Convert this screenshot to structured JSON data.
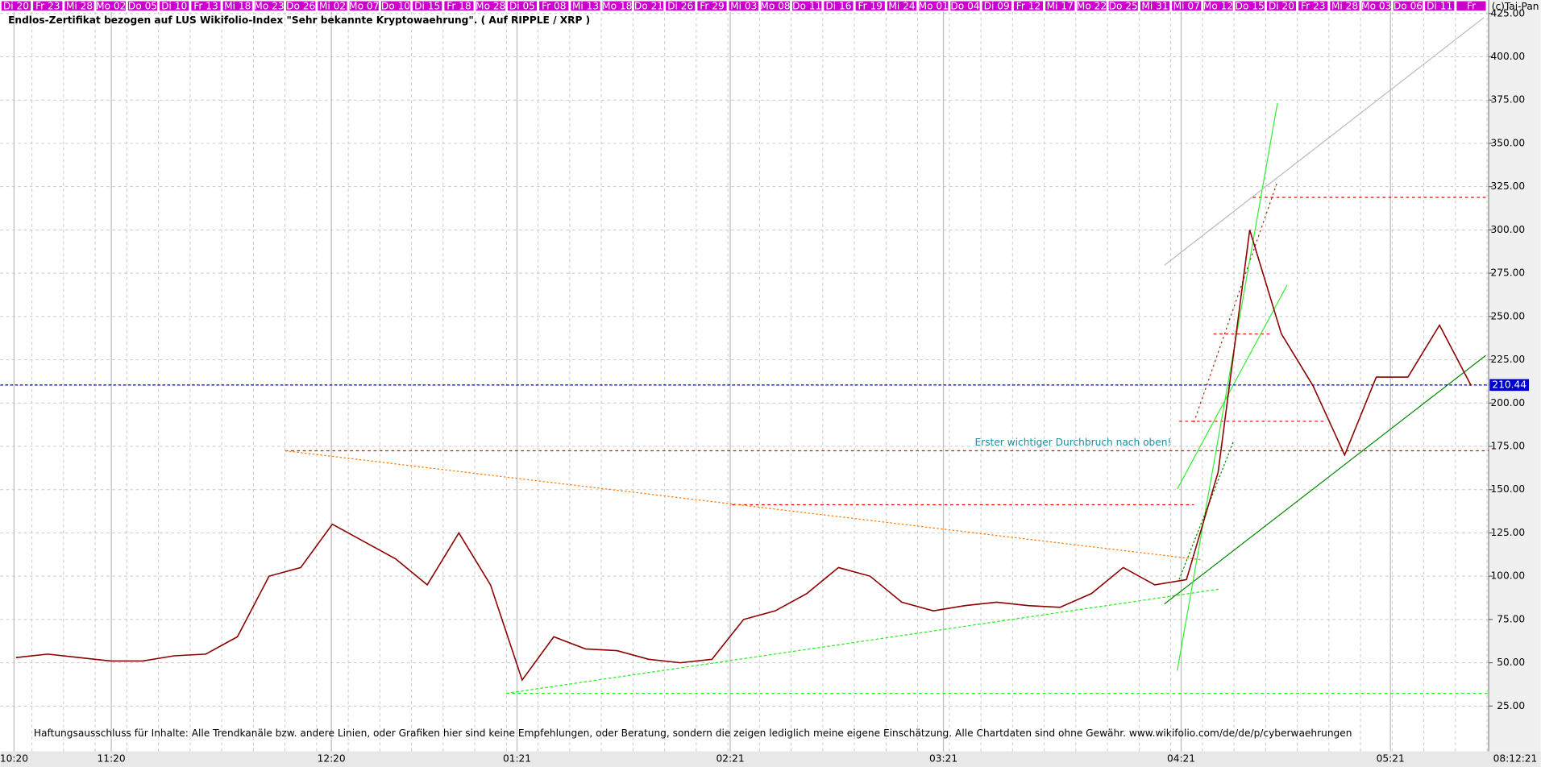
{
  "chart_data": {
    "type": "line",
    "title": "Endlos-Zertifikat bezogen auf LUS Wikifolio-Index \"Sehr bekannte Kryptowaehrung\". ( Auf RIPPLE / XRP )",
    "watermark": "(c)Tai-Pan",
    "categories": [
      "Di 20",
      "Fr 23",
      "Mi 28",
      "Mo 02",
      "Do 05",
      "Di 10",
      "Fr 13",
      "Mi 18",
      "Mo 23",
      "Do 26",
      "Mi 02",
      "Mo 07",
      "Do 10",
      "Di 15",
      "Fr 18",
      "Mo 28",
      "Di 05",
      "Fr 08",
      "Mi 13",
      "Mo 18",
      "Do 21",
      "Di 26",
      "Fr 29",
      "Mi 03",
      "Mo 08",
      "Do 11",
      "Di 16",
      "Fr 19",
      "Mi 24",
      "Mo 01",
      "Do 04",
      "Di 09",
      "Fr 12",
      "Mi 17",
      "Mo 22",
      "Do 25",
      "Mi 31",
      "Mi 07",
      "Mo 12",
      "Do 15",
      "Di 20",
      "Fr 23",
      "Mi 28",
      "Mo 03",
      "Do 06",
      "Di 11",
      "Fr"
    ],
    "values": [
      53,
      55,
      53,
      51,
      51,
      54,
      55,
      65,
      100,
      105,
      130,
      120,
      110,
      95,
      125,
      95,
      40,
      65,
      58,
      57,
      52,
      50,
      52,
      75,
      80,
      90,
      105,
      100,
      85,
      80,
      83,
      85,
      83,
      82,
      90,
      105,
      95,
      98,
      160,
      300,
      240,
      210,
      170,
      215,
      215,
      245,
      210
    ],
    "color": "#8b0000",
    "ylim": [
      0,
      426
    ],
    "yticks": [
      {
        "value": 25,
        "label": "25.00"
      },
      {
        "value": 50,
        "label": "50.00"
      },
      {
        "value": 75,
        "label": "75.00"
      },
      {
        "value": 100,
        "label": "100.00"
      },
      {
        "value": 125,
        "label": "125.00"
      },
      {
        "value": 150,
        "label": "150.00"
      },
      {
        "value": 175,
        "label": "175.00"
      },
      {
        "value": 200,
        "label": "200.00"
      },
      {
        "value": 225,
        "label": "225.00"
      },
      {
        "value": 250,
        "label": "250.00"
      },
      {
        "value": 275,
        "label": "275.00"
      },
      {
        "value": 300,
        "label": "300.00"
      },
      {
        "value": 325,
        "label": "325.00"
      },
      {
        "value": 350,
        "label": "350.00"
      },
      {
        "value": 375,
        "label": "375.00"
      },
      {
        "value": 400,
        "label": "400.00"
      },
      {
        "value": 425,
        "label": "425.00"
      }
    ],
    "grid": true,
    "last_value": 210.44,
    "month_labels": [
      "10:20",
      "11:20",
      "12:20",
      "01:21",
      "02:21",
      "03:21",
      "04:21",
      "05:21"
    ],
    "current_date": "08:12:21",
    "annotation": "Erster wichtiger Durchbruch nach oben!",
    "disclaimer": "Haftungsausschluss für Inhalte: Alle Trendkanäle bzw. andere Linien, oder Grafiken hier sind keine Empfehlungen, oder Beratung, sondern die zeigen lediglich meine eigene Einschätzung. Alle Chartdaten sind ohne Gewähr.  www.wikifolio.com/de/de/p/cyberwaehrungen"
  }
}
